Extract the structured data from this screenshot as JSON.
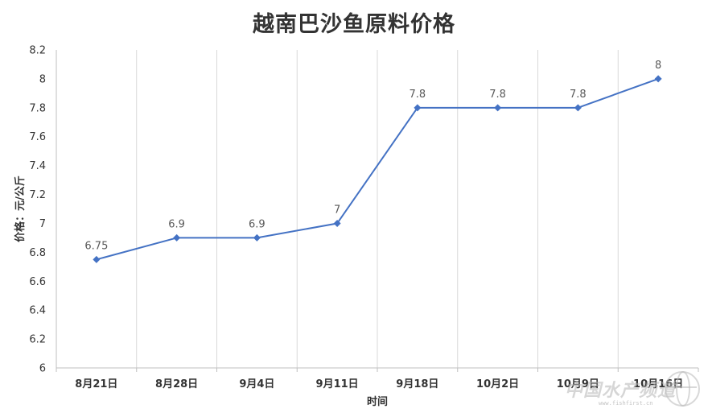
{
  "chart_data": {
    "type": "line",
    "title": "越南巴沙鱼原料价格",
    "xlabel": "时间",
    "ylabel": "价格：元/公斤",
    "categories": [
      "8月21日",
      "8月28日",
      "9月4日",
      "9月11日",
      "9月18日",
      "10月2日",
      "10月9日",
      "10月16日"
    ],
    "series": [
      {
        "values": [
          6.75,
          6.9,
          6.9,
          7,
          7.8,
          7.8,
          7.8,
          8
        ]
      }
    ],
    "data_labels": [
      "6.75",
      "6.9",
      "6.9",
      "7",
      "7.8",
      "7.8",
      "7.8",
      "8"
    ],
    "ylim": [
      6,
      8.2
    ],
    "yticks": [
      "6",
      "6.2",
      "6.4",
      "6.6",
      "6.8",
      "7",
      "7.2",
      "7.4",
      "7.6",
      "7.8",
      "8",
      "8.2"
    ],
    "grid": "vertical",
    "legend": "none",
    "colors": {
      "line": "#4472C4",
      "grid": "#D9D9D9",
      "axis": "#BFBFBF"
    }
  },
  "watermark": {
    "text": "中国水产频道",
    "url": "www.fishfirst.cn"
  }
}
